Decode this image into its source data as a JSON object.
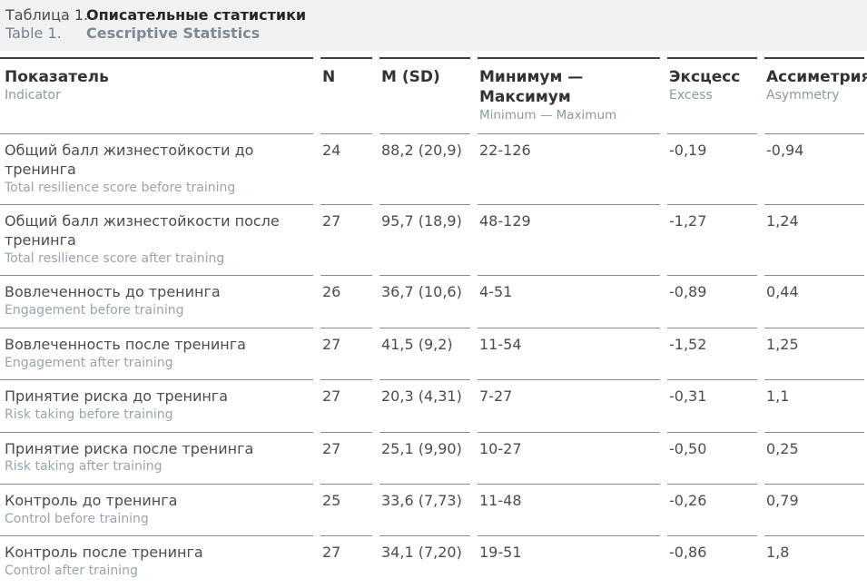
{
  "title": {
    "ru_label": "Таблица 1.",
    "ru_title": "Описательные статистики",
    "en_label": "Table 1.",
    "en_title": "Cescriptive Statistics"
  },
  "table": {
    "columns": [
      {
        "ru": "Показатель",
        "en": "Indicator"
      },
      {
        "ru": "N",
        "en": ""
      },
      {
        "ru": "M (SD)",
        "en": ""
      },
      {
        "ru": "Минимум — Максимум",
        "en": "Minimum — Maximum"
      },
      {
        "ru": "Эксцесс",
        "en": "Excess"
      },
      {
        "ru": "Ассиметрия",
        "en": "Asymmetry"
      }
    ],
    "rows": [
      {
        "indicator_ru": "Общий балл жизнестойкости до тренинга",
        "indicator_en": "Total resilience score before training",
        "n": "24",
        "m_sd": "88,2 (20,9)",
        "min_max": "22-126",
        "excess": "-0,19",
        "asymmetry": "-0,94"
      },
      {
        "indicator_ru": "Общий балл жизнестойкости после тренинга",
        "indicator_en": "Total resilience score after training",
        "n": "27",
        "m_sd": "95,7 (18,9)",
        "min_max": "48-129",
        "excess": "-1,27",
        "asymmetry": "1,24"
      },
      {
        "indicator_ru": "Вовлеченность до тренинга",
        "indicator_en": "Engagement before training",
        "n": "26",
        "m_sd": "36,7 (10,6)",
        "min_max": "4-51",
        "excess": "-0,89",
        "asymmetry": "0,44"
      },
      {
        "indicator_ru": "Вовлеченность после тренинга",
        "indicator_en": "Engagement after training",
        "n": "27",
        "m_sd": "41,5 (9,2)",
        "min_max": "11-54",
        "excess": "-1,52",
        "asymmetry": "1,25"
      },
      {
        "indicator_ru": "Принятие риска до тренинга",
        "indicator_en": "Risk taking before training",
        "n": "27",
        "m_sd": "20,3 (4,31)",
        "min_max": "7-27",
        "excess": "-0,31",
        "asymmetry": "1,1"
      },
      {
        "indicator_ru": "Принятие риска после тренинга",
        "indicator_en": "Risk taking after training",
        "n": "27",
        "m_sd": "25,1 (9,90)",
        "min_max": "10-27",
        "excess": "-0,50",
        "asymmetry": "0,25"
      },
      {
        "indicator_ru": "Контроль до тренинга",
        "indicator_en": "Control before training",
        "n": "25",
        "m_sd": "33,6 (7,73)",
        "min_max": "11-48",
        "excess": "-0,26",
        "asymmetry": "0,79"
      },
      {
        "indicator_ru": "Контроль после тренинга",
        "indicator_en": "Control after training",
        "n": "27",
        "m_sd": "34,1 (7,20)",
        "min_max": "19-51",
        "excess": "-0,86",
        "asymmetry": "1,8"
      }
    ]
  },
  "colors": {
    "title_band_bg": "#f1f1f1",
    "header_rule": "#3e3e3e",
    "row_rule": "#8b8b8b",
    "text_primary": "#4c4c4c",
    "text_secondary": "#98a3ae"
  }
}
